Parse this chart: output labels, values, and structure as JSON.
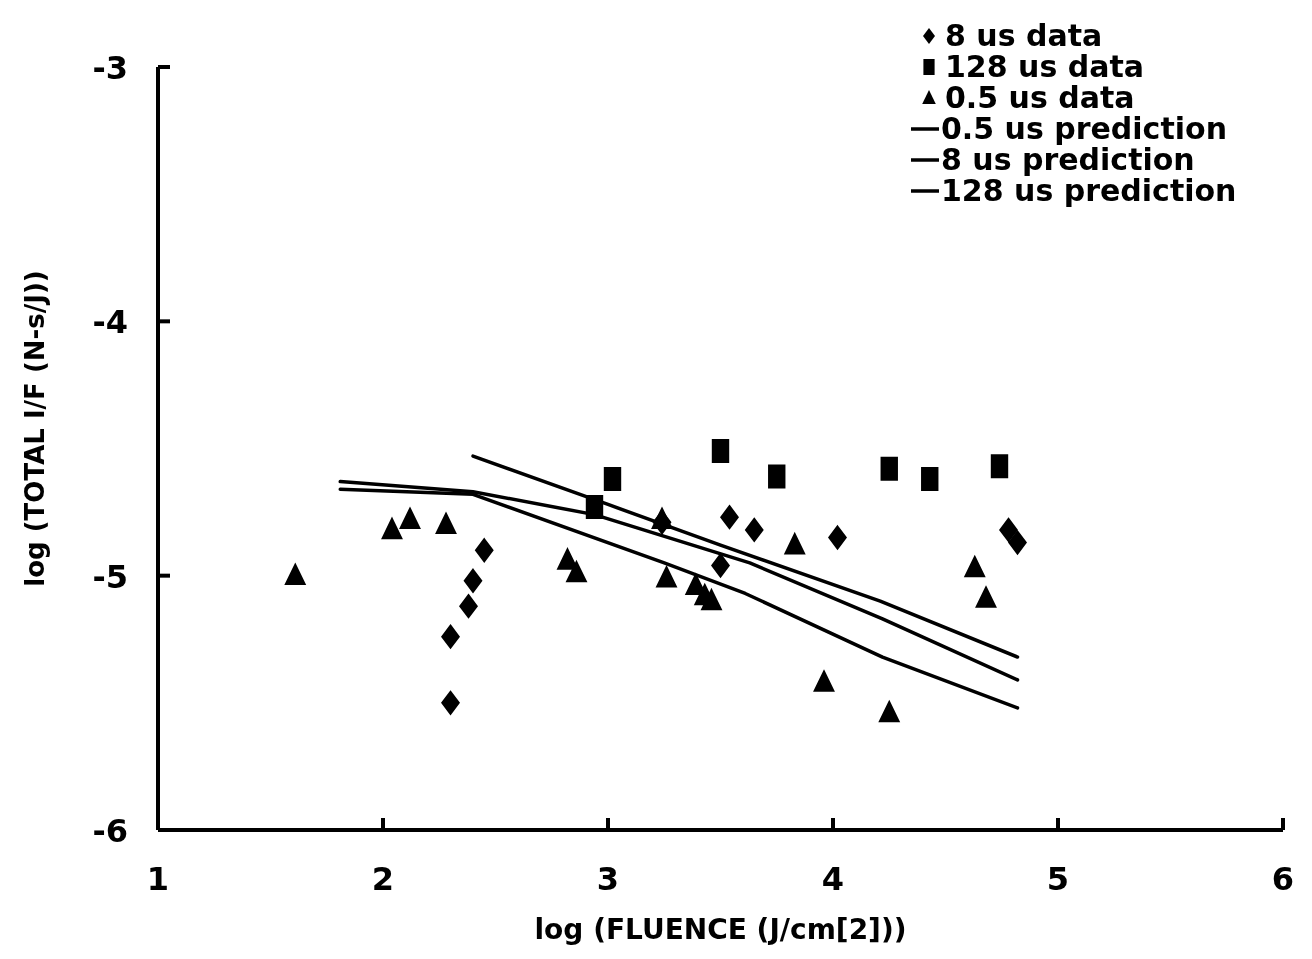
{
  "chart_data": {
    "type": "scatter",
    "xlabel": "log (FLUENCE (J/cm[2]))",
    "ylabel": "log (TOTAL I/F (N-s/J))",
    "xlim": [
      1,
      6
    ],
    "ylim": [
      -6,
      -3
    ],
    "xticks": [
      1,
      2,
      3,
      4,
      5,
      6
    ],
    "yticks": [
      -6,
      -5,
      -4,
      -3
    ],
    "grid": false,
    "legend": "top right",
    "series": [
      {
        "name": "8 us data",
        "marker": "diamond",
        "color": "#000000",
        "x": [
          2.3,
          2.3,
          2.38,
          2.4,
          2.45,
          3.24,
          3.5,
          3.54,
          3.65,
          4.02,
          4.78,
          4.82
        ],
        "values": [
          -5.5,
          -5.24,
          -5.12,
          -5.02,
          -4.9,
          -4.79,
          -4.96,
          -4.77,
          -4.82,
          -4.85,
          -4.82,
          -4.87
        ]
      },
      {
        "name": "128 us data",
        "marker": "square",
        "color": "#000000",
        "x": [
          2.94,
          3.02,
          3.5,
          3.75,
          4.25,
          4.43,
          4.74
        ],
        "values": [
          -4.73,
          -4.62,
          -4.51,
          -4.61,
          -4.58,
          -4.62,
          -4.57
        ]
      },
      {
        "name": "0.5 us data",
        "marker": "triangle",
        "color": "#000000",
        "x": [
          1.61,
          2.04,
          2.12,
          2.28,
          2.82,
          2.86,
          3.24,
          3.26,
          3.39,
          3.43,
          3.46,
          3.83,
          3.96,
          4.25,
          4.63,
          4.68
        ],
        "values": [
          -5.0,
          -4.82,
          -4.78,
          -4.8,
          -4.94,
          -4.99,
          -4.78,
          -5.01,
          -5.04,
          -5.08,
          -5.1,
          -4.88,
          -5.42,
          -5.54,
          -4.97,
          -5.09
        ]
      },
      {
        "name": "0.5 us prediction",
        "type": "line",
        "marker": "none",
        "color": "#000000",
        "x": [
          1.81,
          2.4,
          3.25,
          3.61,
          4.22,
          4.82
        ],
        "values": [
          -4.66,
          -4.68,
          -4.95,
          -5.07,
          -5.32,
          -5.52
        ]
      },
      {
        "name": "8 us prediction",
        "type": "line",
        "marker": "none",
        "color": "#000000",
        "x": [
          1.81,
          2.4,
          2.94,
          3.63,
          4.22,
          4.82
        ],
        "values": [
          -4.63,
          -4.67,
          -4.76,
          -4.95,
          -5.17,
          -5.41
        ]
      },
      {
        "name": "128 us prediction",
        "type": "line",
        "marker": "none",
        "color": "#000000",
        "x": [
          2.4,
          3.0,
          3.5,
          4.21,
          4.82
        ],
        "values": [
          -4.53,
          -4.72,
          -4.88,
          -5.1,
          -5.32
        ]
      }
    ]
  }
}
